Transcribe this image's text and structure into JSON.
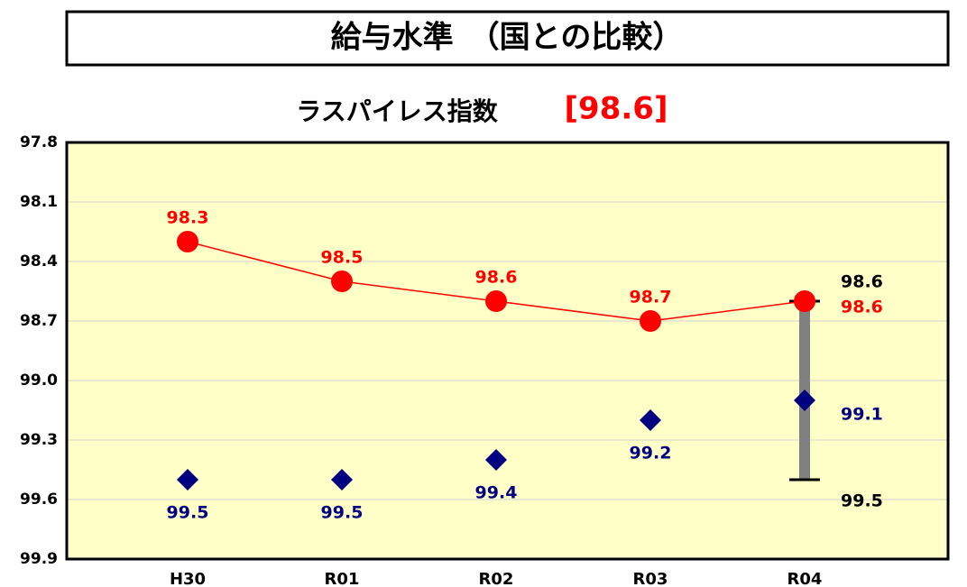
{
  "chart_data": {
    "type": "line",
    "title": "給与水準　（国との比較）",
    "subtitle": "ラスパイレス指数",
    "subtitle_value": "[98.6]",
    "categories": [
      "H30",
      "R01",
      "R02",
      "R03",
      "R04"
    ],
    "series": [
      {
        "color": "#ff0000",
        "values": [
          98.3,
          98.5,
          98.6,
          98.7,
          98.6
        ]
      },
      {
        "color": "#000080",
        "values": [
          99.5,
          99.5,
          99.4,
          99.2,
          99.1
        ]
      }
    ],
    "range_bar": {
      "category": "R04",
      "values": [
        98.6,
        99.5
      ],
      "color": "#808080"
    },
    "ylim": [
      97.8,
      99.9
    ],
    "y_inverted": true,
    "yticks": [
      97.8,
      98.1,
      98.4,
      98.7,
      {
        "value": 99,
        "label": "99.0"
      },
      99.3,
      99.6,
      99.9
    ],
    "grid": true
  }
}
